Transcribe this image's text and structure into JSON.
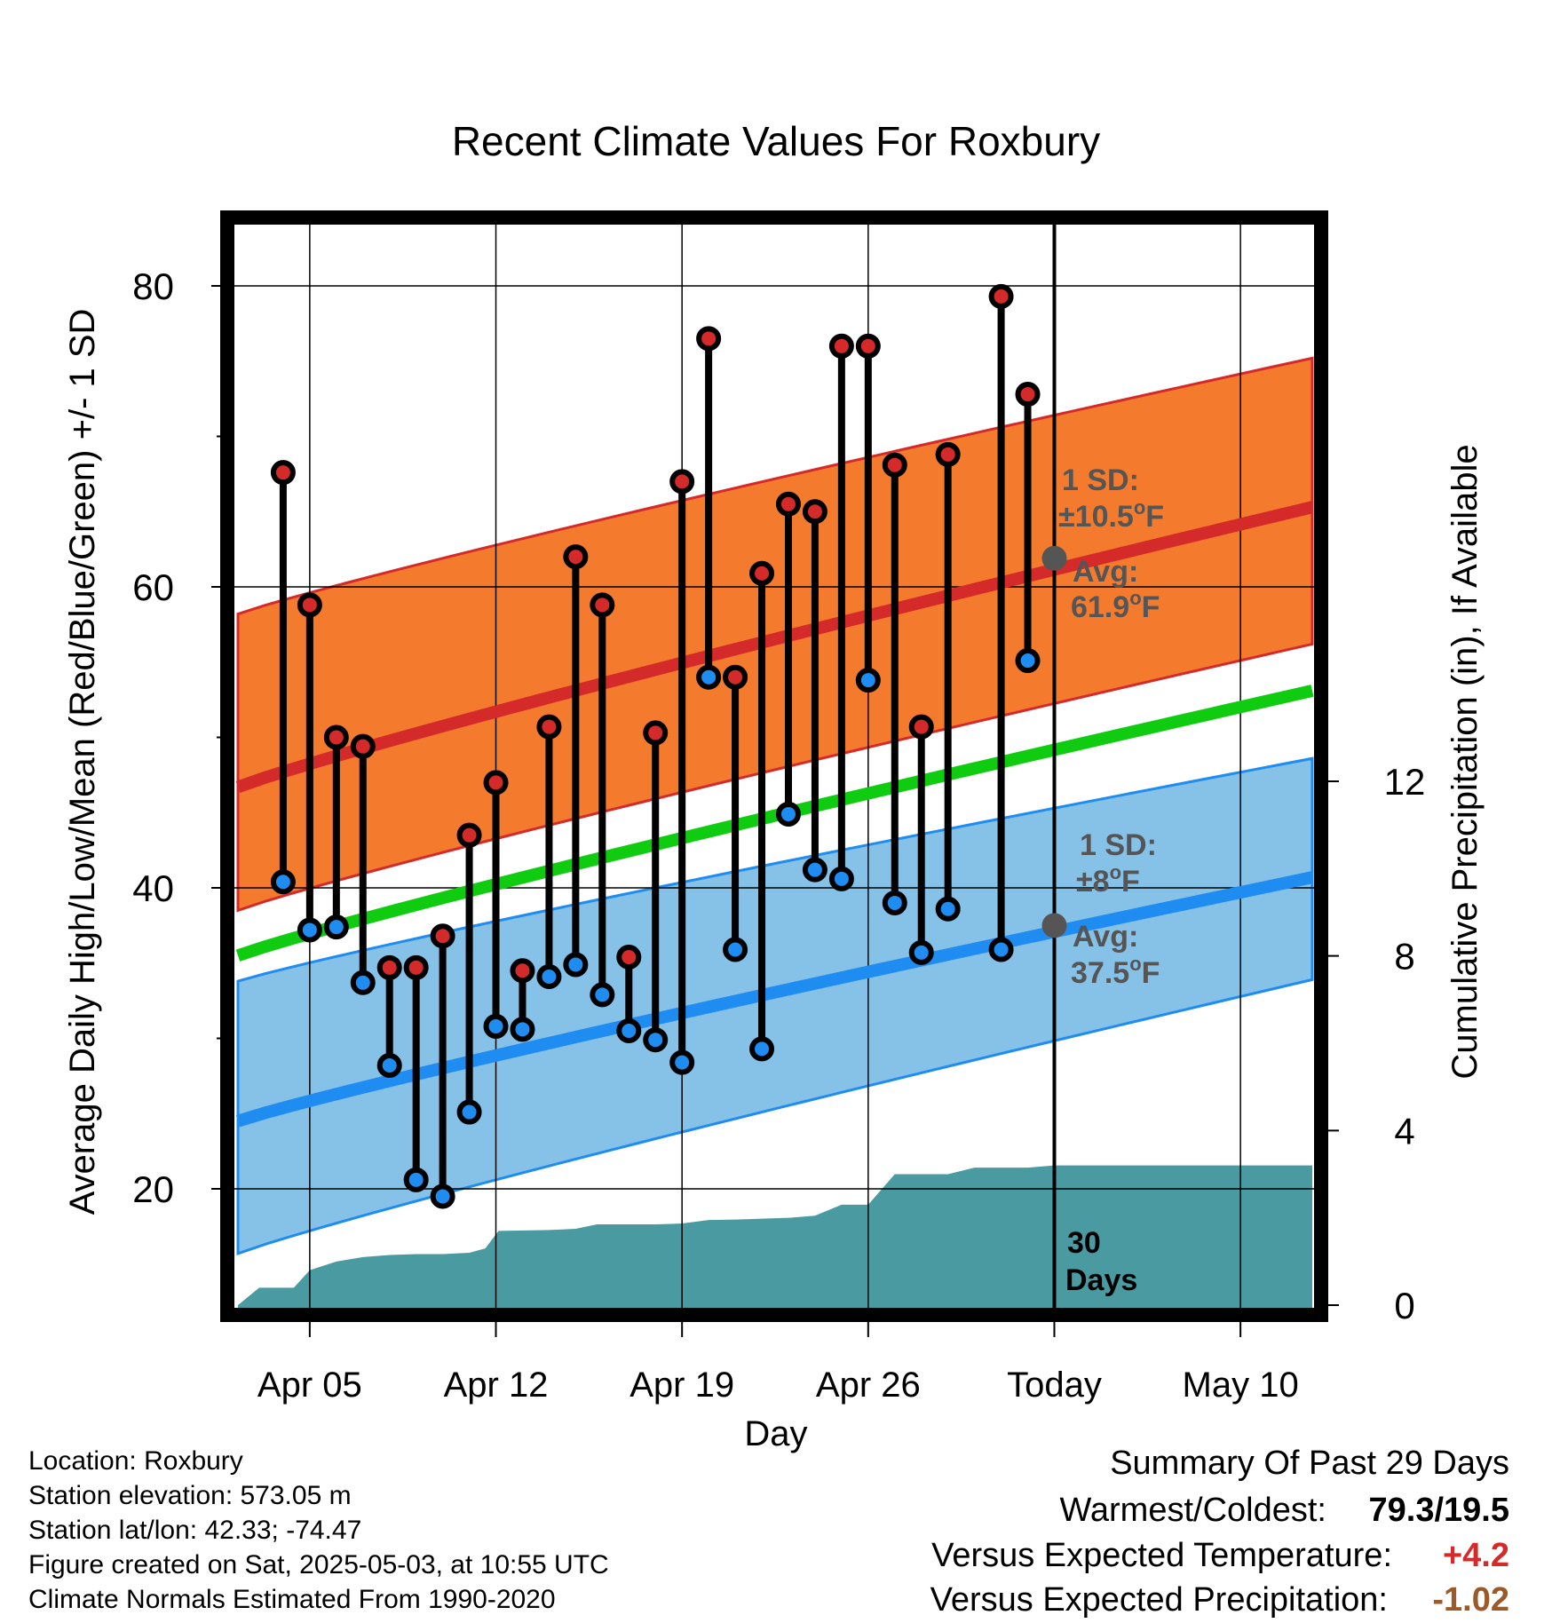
{
  "chart_data": {
    "type": "line",
    "title": "Recent Climate Values For Roxbury",
    "xlabel": "Day",
    "ylabel": "Average Daily High/Low/Mean (Red/Blue/Green) +/- 1 SD",
    "y2label": "Cumulative Precipitation (in), If Available",
    "x_tick_labels": [
      "Apr 05",
      "Apr 12",
      "Apr 19",
      "Apr 26",
      "Today",
      "May 10"
    ],
    "x_tick_days": [
      5,
      12,
      19,
      26,
      33,
      40
    ],
    "x_range_days": [
      2.3,
      42.7
    ],
    "today_day": 33,
    "ylim": [
      12,
      84
    ],
    "y_ticks": [
      20,
      40,
      60,
      80
    ],
    "y_minor_ticks": [
      30,
      50,
      70
    ],
    "y2lim": [
      0,
      16.5
    ],
    "y2_ticks": [
      0,
      4,
      8,
      12
    ],
    "grid": true,
    "normals": {
      "days": [
        2.3,
        42.7
      ],
      "high_mean": [
        46.7,
        65.3
      ],
      "high_upper": [
        58.2,
        75.2
      ],
      "high_lower": [
        38.5,
        56.2
      ],
      "mean": [
        35.5,
        53.1
      ],
      "low_mean": [
        24.5,
        40.7
      ],
      "low_upper": [
        33.8,
        48.6
      ],
      "low_lower": [
        15.7,
        33.9
      ]
    },
    "series": [
      {
        "name": "High",
        "days": [
          4,
          5,
          6,
          7,
          8,
          9,
          10,
          11,
          12,
          13,
          14,
          15,
          16,
          17,
          18,
          19,
          20,
          21,
          22,
          23,
          24,
          25,
          26,
          27,
          28,
          29,
          31,
          32
        ],
        "values": [
          67.6,
          58.8,
          50.0,
          49.4,
          34.7,
          34.7,
          36.8,
          43.5,
          47.0,
          34.5,
          50.7,
          62.0,
          58.8,
          35.4,
          50.3,
          67.0,
          76.5,
          54.0,
          60.9,
          65.5,
          65.0,
          76.0,
          76.0,
          68.1,
          50.7,
          68.8,
          79.3,
          72.8
        ]
      },
      {
        "name": "Low",
        "days": [
          4,
          5,
          6,
          7,
          8,
          9,
          10,
          11,
          12,
          13,
          14,
          15,
          16,
          17,
          18,
          19,
          20,
          21,
          22,
          23,
          24,
          25,
          26,
          27,
          28,
          29,
          31,
          32
        ],
        "values": [
          40.4,
          37.2,
          37.4,
          33.7,
          28.2,
          20.6,
          19.5,
          25.1,
          30.8,
          30.6,
          34.1,
          34.9,
          32.9,
          30.5,
          29.9,
          28.4,
          54.0,
          35.9,
          29.3,
          44.9,
          41.2,
          40.6,
          53.8,
          39.0,
          35.7,
          38.6,
          35.9,
          55.1
        ]
      },
      {
        "name": "Cumulative Precipitation",
        "axis": "y2",
        "days": [
          2.3,
          3.1,
          4.4,
          5.0,
          6.0,
          7.0,
          8.0,
          9.0,
          10.0,
          11.0,
          11.6,
          12.1,
          14.0,
          15.0,
          15.8,
          17.0,
          18.0,
          19.0,
          20.0,
          21.0,
          22.0,
          23.0,
          24.0,
          25.0,
          26.0,
          27.0,
          28.0,
          29.0,
          30.0,
          31.0,
          32.0,
          33.0,
          42.7
        ],
        "values": [
          0.0,
          0.4,
          0.4,
          0.8,
          1.0,
          1.1,
          1.15,
          1.17,
          1.17,
          1.2,
          1.3,
          1.7,
          1.72,
          1.75,
          1.85,
          1.85,
          1.85,
          1.87,
          1.95,
          1.96,
          1.98,
          2.0,
          2.05,
          2.3,
          2.3,
          3.0,
          3.0,
          3.0,
          3.15,
          3.15,
          3.15,
          3.2,
          3.2
        ]
      }
    ],
    "annotations": {
      "high_sd_label": "1 SD:",
      "high_sd_value": "±10.5",
      "high_avg_label": "Avg:",
      "high_avg_value": "61.9",
      "low_sd_label": "1 SD:",
      "low_sd_value": "±8",
      "low_avg_label": "Avg:",
      "low_avg_value": "37.5",
      "degree_symbol": "o",
      "unit_letter": "F",
      "days_count": "30",
      "days_word": "Days"
    },
    "high_avg_today": 61.9,
    "low_avg_today": 37.5
  },
  "colors": {
    "high_band": "#f47b2e",
    "high_line": "#d42a2a",
    "low_band": "#86c1e8",
    "low_line": "#1e8cf0",
    "mean_line": "#10cc10",
    "precip": "#4a9aa2",
    "high_dot": "#d42a2a",
    "low_dot": "#1e8cf0",
    "annotation": "#555555",
    "positive": "#d42a2a",
    "precip_diff": "#9a5a2a"
  },
  "footer": {
    "location": "Location: Roxbury",
    "elevation": "Station elevation: 573.05 m",
    "latlon": "Station lat/lon: 42.33; -74.47",
    "created": "Figure created on Sat, 2025-05-03, at 10:55 UTC",
    "normals": "Climate Normals Estimated From 1990-2020"
  },
  "summary": {
    "title": "Summary Of Past 29 Days",
    "warmest_label": "Warmest/Coldest:",
    "warmest_value": "79.3/19.5",
    "temp_label": "Versus Expected Temperature:",
    "temp_value": "+4.2",
    "precip_label": "Versus Expected Precipitation:",
    "precip_value": "-1.02"
  }
}
